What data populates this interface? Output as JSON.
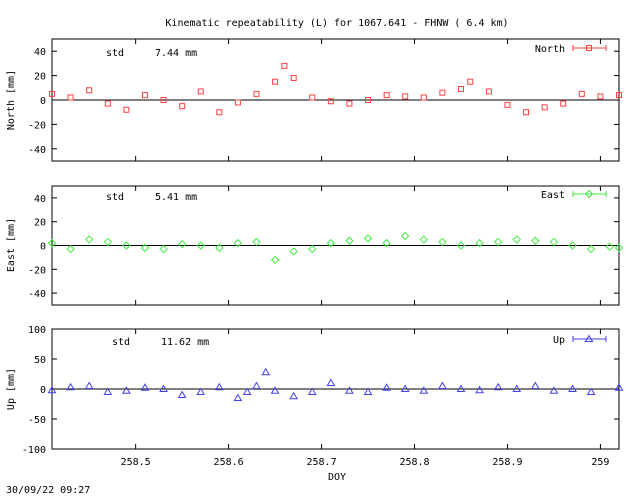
{
  "chart_data": {
    "type": "scatter",
    "title": "Kinematic repeatability (L) for 1067.641 - FHNW  (  6.4 km)",
    "xlabel": "DOY",
    "xlim": [
      258.41,
      259.02
    ],
    "xticks": [
      "258.5",
      "258.6",
      "258.7",
      "258.8",
      "258.9",
      "259"
    ],
    "timestamp": "30/09/22 09:27",
    "panels": [
      {
        "name": "North",
        "ylabel": "North [mm]",
        "ylim": [
          -50,
          50
        ],
        "yticks": [
          "40",
          "20",
          "0",
          "-20",
          "-40"
        ],
        "std_label": "std",
        "std_value": "7.44 mm",
        "legend": "North",
        "color": "#ff4040",
        "marker": "square",
        "x": [
          258.41,
          258.43,
          258.45,
          258.47,
          258.49,
          258.51,
          258.53,
          258.55,
          258.57,
          258.59,
          258.61,
          258.63,
          258.65,
          258.66,
          258.67,
          258.69,
          258.71,
          258.73,
          258.75,
          258.77,
          258.79,
          258.81,
          258.83,
          258.85,
          258.86,
          258.88,
          258.9,
          258.92,
          258.94,
          258.96,
          258.98,
          259.0,
          259.02
        ],
        "y": [
          5,
          2,
          8,
          -3,
          -8,
          4,
          0,
          -5,
          7,
          -10,
          -2,
          5,
          15,
          28,
          18,
          2,
          -1,
          -3,
          0,
          4,
          3,
          2,
          6,
          9,
          15,
          7,
          -4,
          -10,
          -6,
          -3,
          5,
          3,
          4
        ]
      },
      {
        "name": "East",
        "ylabel": "East [mm]",
        "ylim": [
          -50,
          50
        ],
        "yticks": [
          "40",
          "20",
          "0",
          "-20",
          "-40"
        ],
        "std_label": "std",
        "std_value": "5.41 mm",
        "legend": "East",
        "color": "#40ee40",
        "marker": "diamond",
        "x": [
          258.41,
          258.43,
          258.45,
          258.47,
          258.49,
          258.51,
          258.53,
          258.55,
          258.57,
          258.59,
          258.61,
          258.63,
          258.65,
          258.67,
          258.69,
          258.71,
          258.73,
          258.75,
          258.77,
          258.79,
          258.81,
          258.83,
          258.85,
          258.87,
          258.89,
          258.91,
          258.93,
          258.95,
          258.97,
          258.99,
          259.01,
          259.02
        ],
        "y": [
          2,
          -3,
          5,
          3,
          0,
          -2,
          -3,
          1,
          0,
          -2,
          2,
          3,
          -12,
          -5,
          -3,
          2,
          4,
          6,
          2,
          8,
          5,
          3,
          0,
          2,
          3,
          5,
          4,
          3,
          0,
          -3,
          -1,
          -2
        ]
      },
      {
        "name": "Up",
        "ylabel": "Up [mm]",
        "ylim": [
          -100,
          100
        ],
        "yticks": [
          "100",
          "50",
          "0",
          "-50",
          "-100"
        ],
        "std_label": "std",
        "std_value": "11.62 mm",
        "legend": "Up",
        "color": "#4040ee",
        "marker": "triangle",
        "x": [
          258.41,
          258.43,
          258.45,
          258.47,
          258.49,
          258.51,
          258.53,
          258.55,
          258.57,
          258.59,
          258.61,
          258.62,
          258.63,
          258.64,
          258.65,
          258.67,
          258.69,
          258.71,
          258.73,
          258.75,
          258.77,
          258.79,
          258.81,
          258.83,
          258.85,
          258.87,
          258.89,
          258.91,
          258.93,
          258.95,
          258.97,
          258.99,
          259.02
        ],
        "y": [
          -2,
          3,
          5,
          -5,
          -3,
          2,
          0,
          -10,
          -5,
          3,
          -15,
          -5,
          5,
          28,
          -3,
          -12,
          -5,
          10,
          -3,
          -5,
          2,
          0,
          -3,
          5,
          0,
          -2,
          3,
          0,
          5,
          -3,
          0,
          -5,
          2
        ]
      }
    ]
  }
}
